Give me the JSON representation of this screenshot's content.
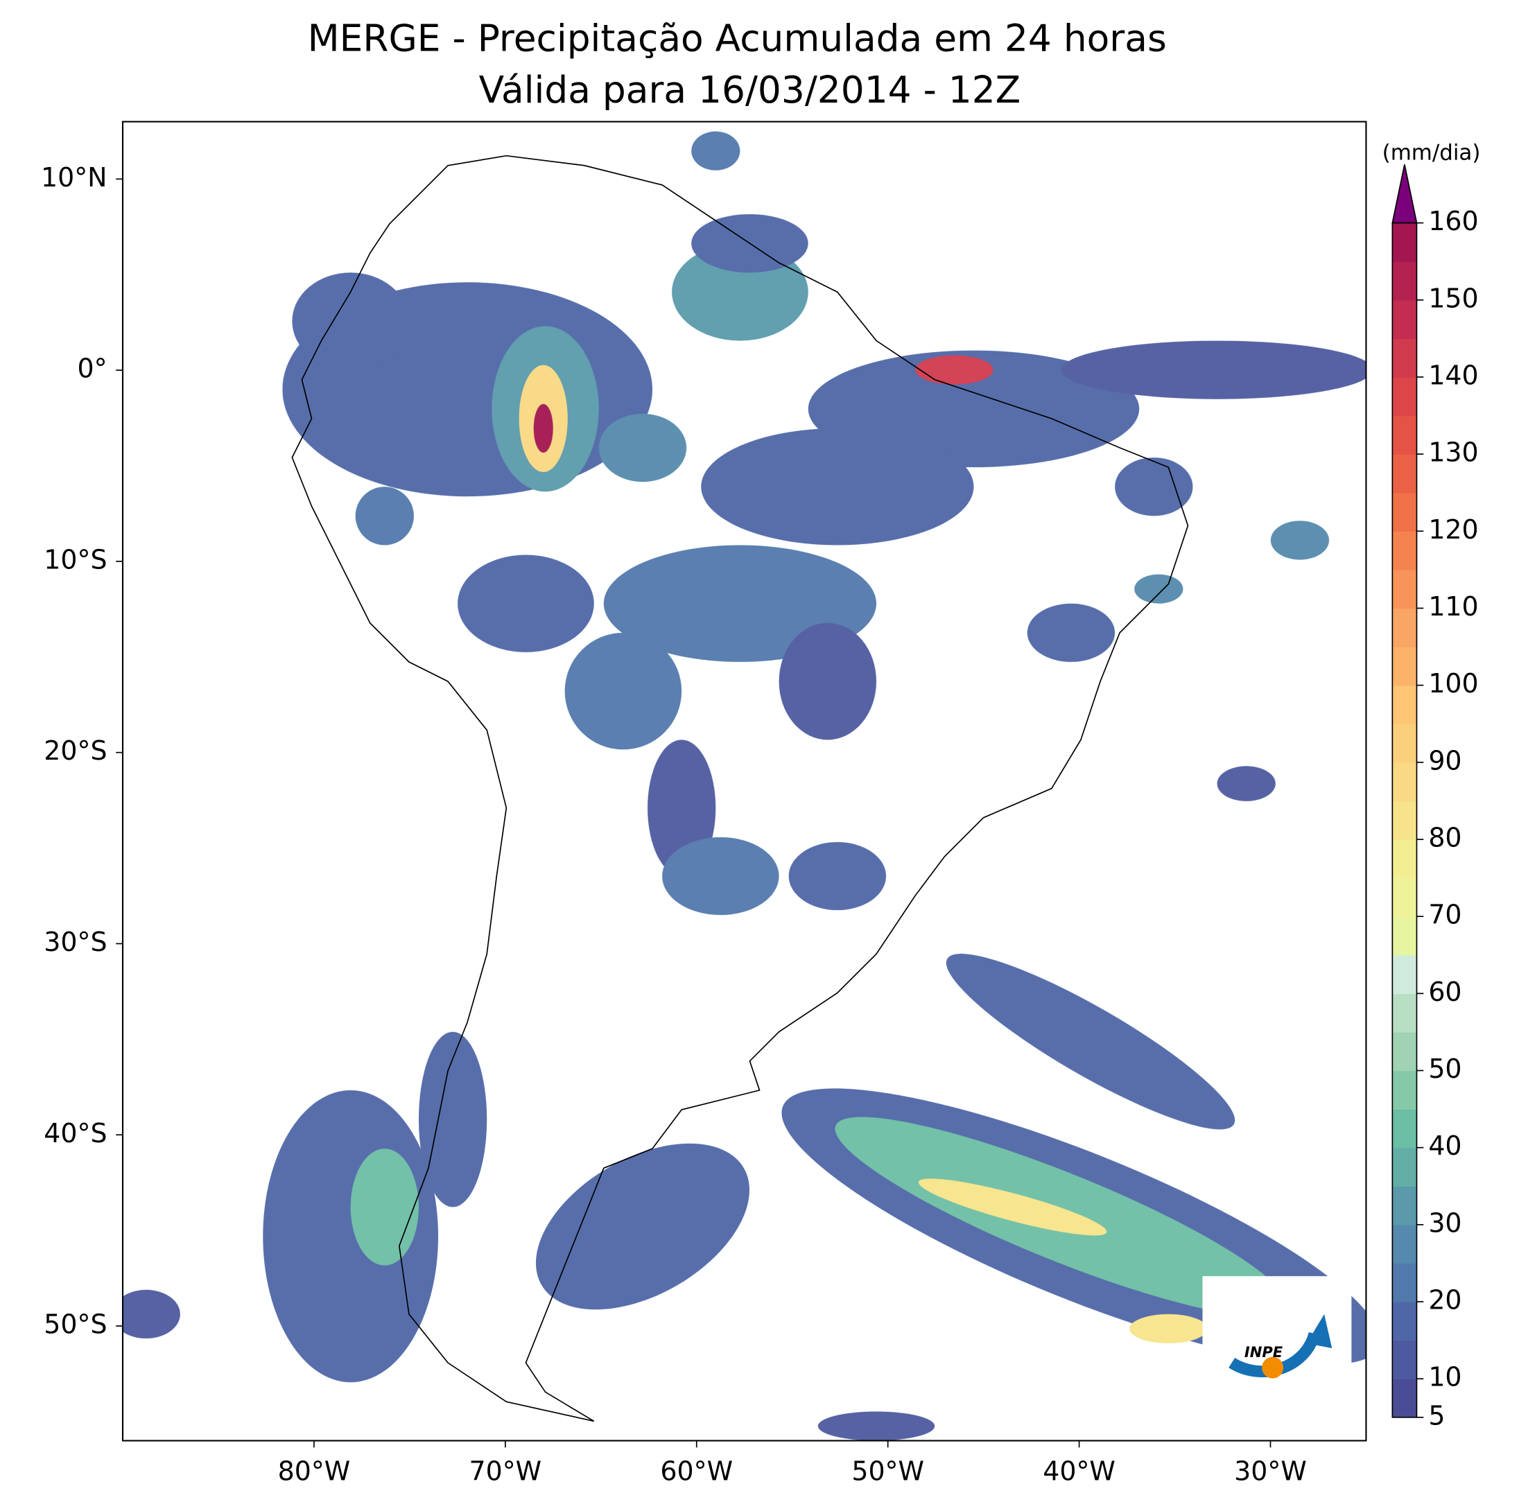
{
  "chart_data": {
    "type": "map",
    "title": "MERGE - Precipitação Acumulada em 24 horas",
    "subtitle": "Válida para 16/03/2014 - 12Z",
    "xlim": [
      -90,
      -25
    ],
    "ylim": [
      -56,
      13
    ],
    "xticks": [
      {
        "value": -80,
        "label": "80°W"
      },
      {
        "value": -70,
        "label": "70°W"
      },
      {
        "value": -60,
        "label": "60°W"
      },
      {
        "value": -50,
        "label": "50°W"
      },
      {
        "value": -40,
        "label": "40°W"
      },
      {
        "value": -30,
        "label": "30°W"
      }
    ],
    "yticks": [
      {
        "value": 10,
        "label": "10°N"
      },
      {
        "value": 0,
        "label": "0°"
      },
      {
        "value": -10,
        "label": "10°S"
      },
      {
        "value": -20,
        "label": "20°S"
      },
      {
        "value": -30,
        "label": "30°S"
      },
      {
        "value": -40,
        "label": "40°S"
      },
      {
        "value": -50,
        "label": "50°S"
      }
    ],
    "colorbar_label": "(mm/dia)",
    "levels": [
      5,
      10,
      15,
      20,
      25,
      30,
      35,
      40,
      45,
      50,
      55,
      60,
      65,
      70,
      75,
      80,
      85,
      90,
      95,
      100,
      105,
      110,
      115,
      120,
      125,
      130,
      135,
      140,
      145,
      150,
      155,
      160
    ],
    "level_colors": [
      "#4a4c96",
      "#4d5a9f",
      "#4f67a7",
      "#5279ac",
      "#5589ad",
      "#5a9aab",
      "#63aea7",
      "#6cbea4",
      "#86c9a9",
      "#9fd3b2",
      "#b8dfc4",
      "#d0ebdc",
      "#e7f4a0",
      "#eef39a",
      "#f4ee92",
      "#f7e48a",
      "#f9d983",
      "#fbd07d",
      "#fdc574",
      "#fbb36a",
      "#f9a564",
      "#f8945a",
      "#f58350",
      "#f17148",
      "#eb6145",
      "#e55346",
      "#dc4649",
      "#d03a4d",
      "#c32e50",
      "#b32251",
      "#a31650"
    ],
    "extend_color": "#7b007b",
    "colorbar_ticks": [
      5,
      10,
      20,
      30,
      40,
      50,
      60,
      70,
      80,
      90,
      100,
      110,
      120,
      130,
      140,
      150,
      160
    ],
    "logo_text": "INPE"
  }
}
